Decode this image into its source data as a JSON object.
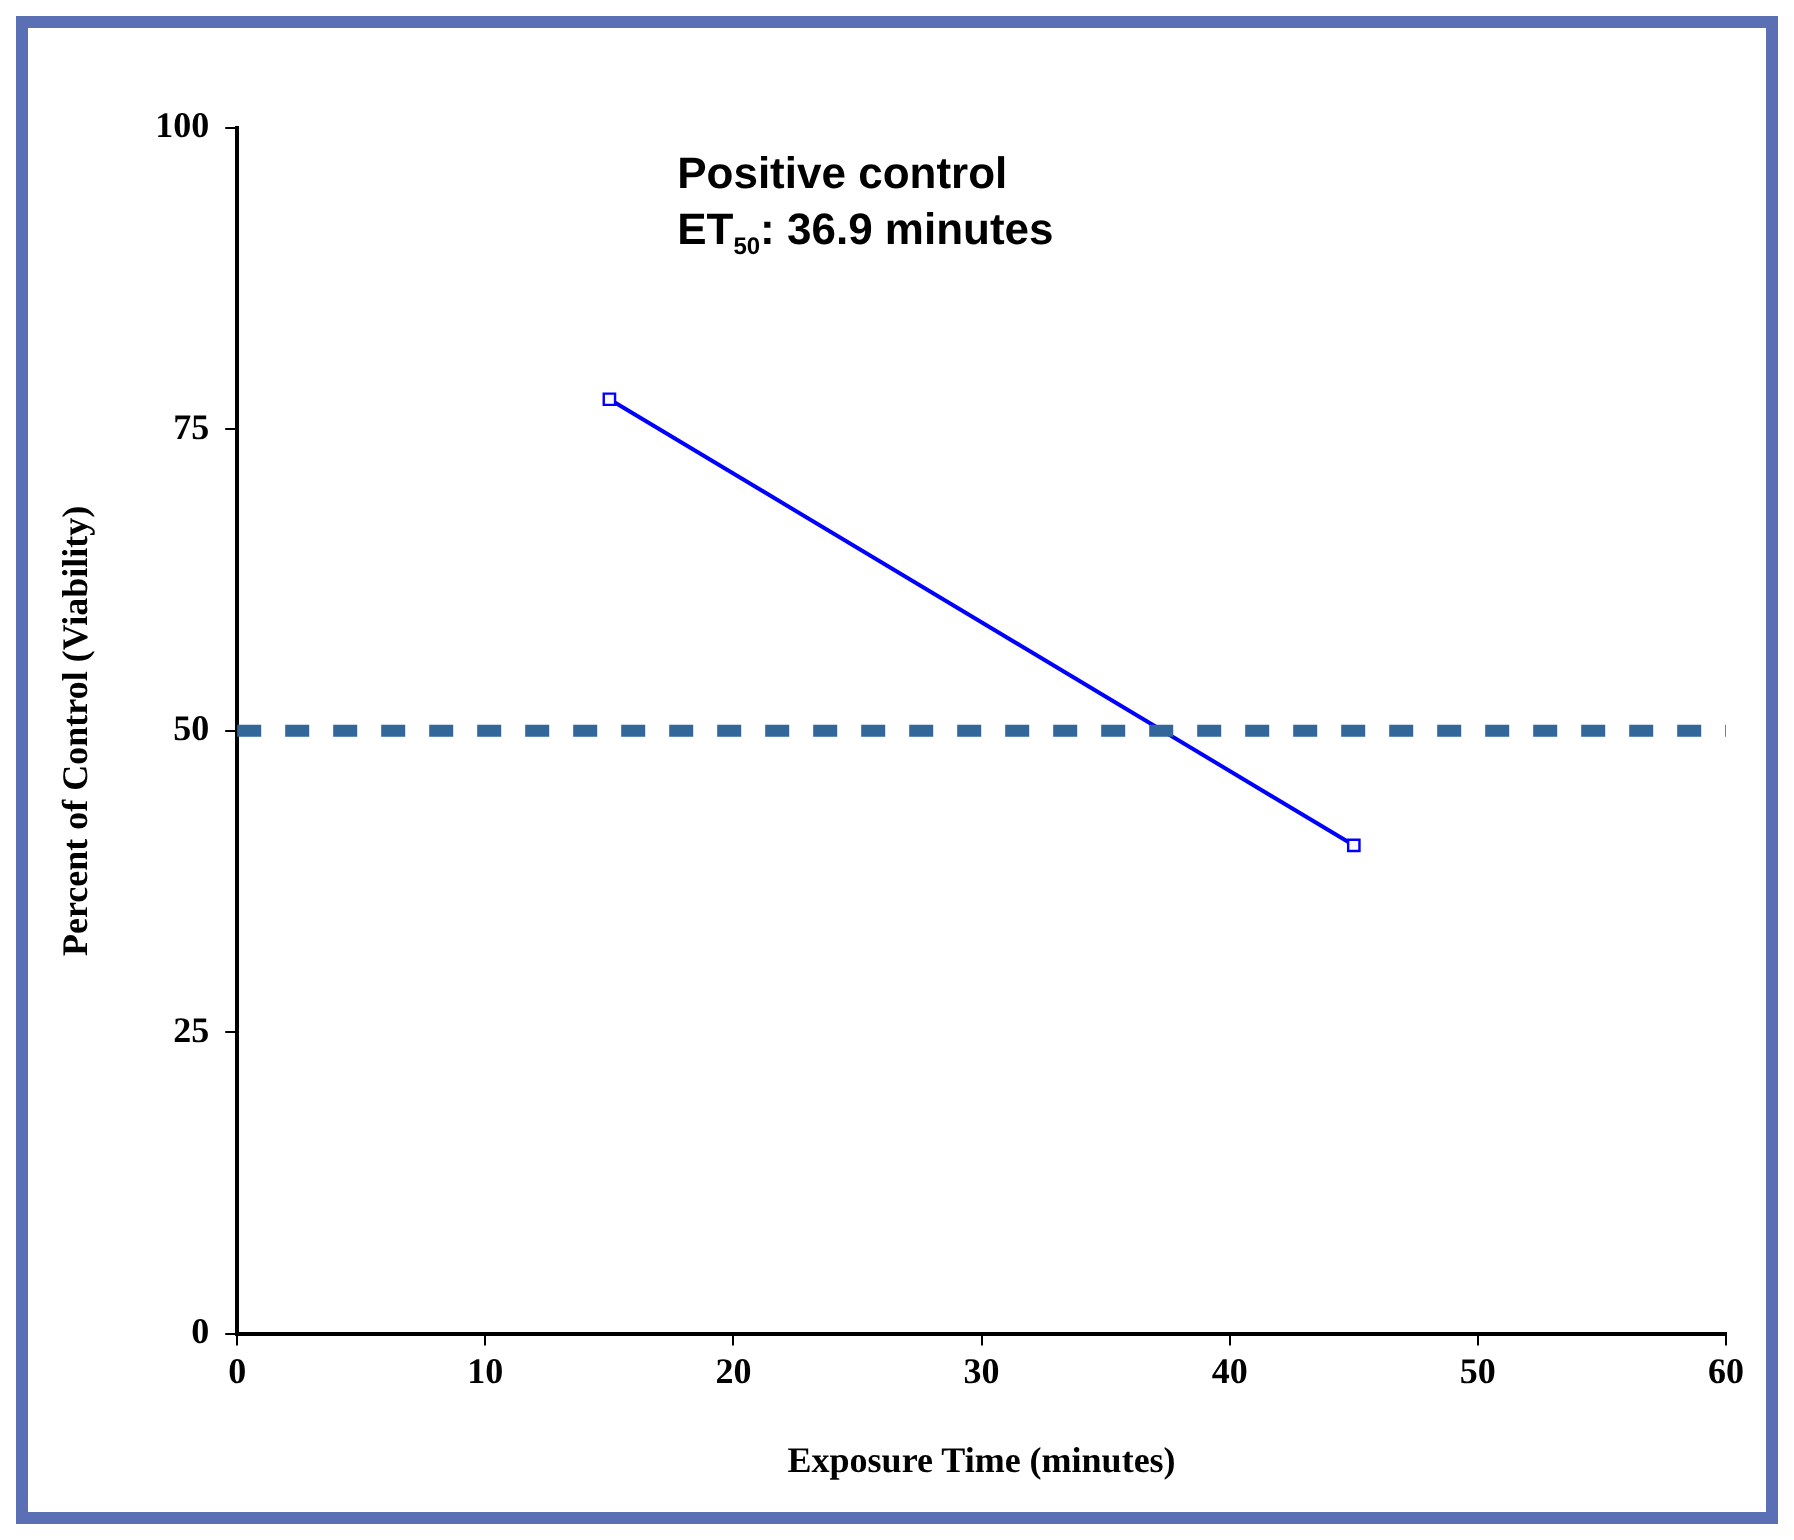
{
  "chart_data": {
    "type": "line",
    "xlabel": "Exposure Time (minutes)",
    "ylabel": "Percent of Control (Viability)",
    "x": [
      15,
      45
    ],
    "series": [
      {
        "color": "#0000ff",
        "values": [
          77.5,
          40.5
        ]
      }
    ],
    "xlim": [
      0,
      60
    ],
    "xticks": [
      0,
      10,
      20,
      30,
      40,
      50,
      60
    ],
    "ylim": [
      0,
      100
    ],
    "yticks": [
      0,
      25,
      50,
      75,
      100
    ],
    "grid": false,
    "legend": false,
    "marker": "square",
    "line_style": "solid",
    "ref_lines": [
      {
        "axis": "y",
        "value": 50,
        "color": "#336699",
        "line_style": "dashed"
      }
    ],
    "annotations": [
      "Positive control",
      "ET$_{50}$: 36.9 minutes"
    ]
  }
}
